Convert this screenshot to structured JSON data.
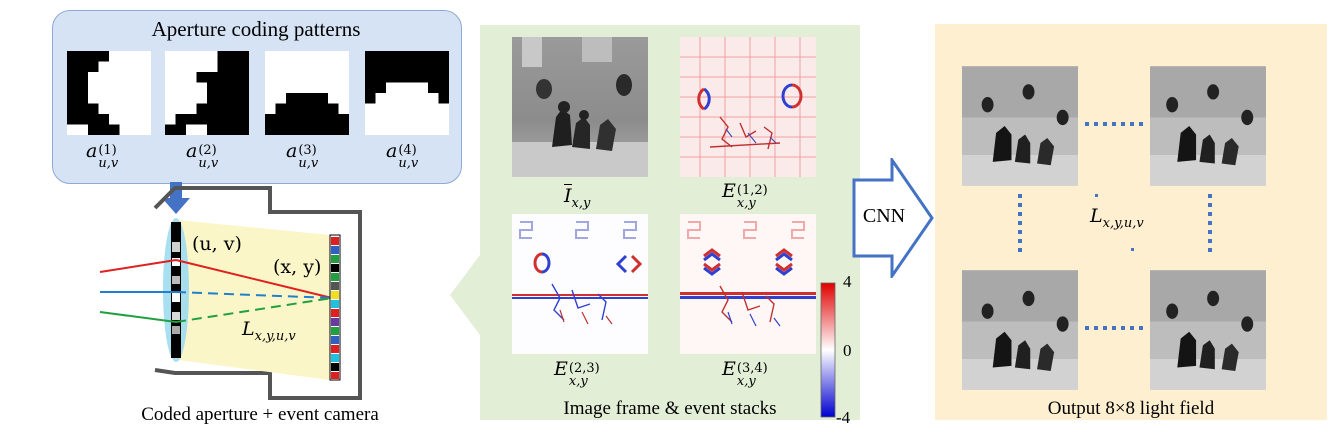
{
  "aperture_panel": {
    "title": "Aperture coding patterns",
    "patterns": [
      {
        "base": "a",
        "sub": "u,v",
        "sup": "(1)"
      },
      {
        "base": "a",
        "sub": "u,v",
        "sup": "(2)"
      },
      {
        "base": "a",
        "sub": "u,v",
        "sup": "(3)"
      },
      {
        "base": "a",
        "sub": "u,v",
        "sup": "(4)"
      }
    ]
  },
  "camera": {
    "uv_label": "(u, v)",
    "xy_label": "(x, y)",
    "L_base": "L",
    "L_sub": "x,y,u,v",
    "caption": "Coded aperture + event camera"
  },
  "event_panel": {
    "caption": "Image frame & event stacks",
    "labels": [
      {
        "base": "I",
        "sub": "x,y",
        "sup": ""
      },
      {
        "base": "E",
        "sub": "x,y",
        "sup": "(1,2)"
      },
      {
        "base": "E",
        "sub": "x,y",
        "sup": "(2,3)"
      },
      {
        "base": "E",
        "sub": "x,y",
        "sup": "(3,4)"
      }
    ],
    "colorbar": {
      "max": "4",
      "mid": "0",
      "min": "-4"
    }
  },
  "arrow_label": "CNN",
  "output_panel": {
    "caption": "Output 8×8 light field",
    "L_base": "L",
    "L_sub": "x,y,u,v"
  },
  "colors": {
    "aperture_panel_bg": "#d6e3f5",
    "event_panel_bg": "#e3eed7",
    "output_panel_bg": "#fdefd0",
    "arrow_blue": "#4472c4",
    "dots_blue": "#4472c4",
    "ray_red": "#e02020",
    "ray_blue": "#2080d0",
    "ray_green": "#20a040",
    "lens_cyan": "#9fdcef",
    "cone_yellow": "#fbf6c8"
  }
}
